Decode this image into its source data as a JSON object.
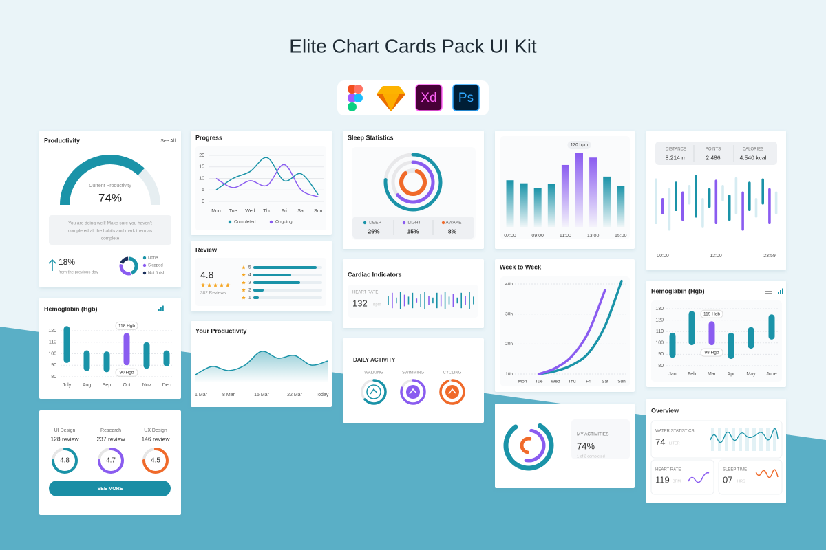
{
  "header": {
    "title": "Elite Chart Cards Pack UI Kit",
    "tools": [
      "Xd",
      "Ps"
    ]
  },
  "productivity": {
    "title": "Productivity",
    "link": "See All",
    "gauge_label": "Current Productivity",
    "gauge_value": 74,
    "gauge_value_label": "74%",
    "gauge_lim": [
      0,
      100
    ],
    "message": [
      "You are doing well! Make sure you haven't",
      "completed all the habits and mark them as",
      "complete"
    ],
    "change": "18%",
    "change_note": "from the previous day",
    "donut": [
      {
        "name": "Done",
        "color": "#1a93a8",
        "value": 45
      },
      {
        "name": "Skipped",
        "color": "#8a5cf0",
        "value": 35
      },
      {
        "name": "Not finish",
        "color": "#1b2f5a",
        "value": 20
      }
    ]
  },
  "hemoglobin": {
    "title": "Hemoglabin (Hgb)",
    "categories": [
      "July",
      "Aug",
      "Sep",
      "Oct",
      "Nov",
      "Dec"
    ],
    "lows": [
      92,
      85,
      84,
      90,
      87,
      89
    ],
    "highs": [
      124,
      103,
      102,
      118,
      110,
      103
    ],
    "high_labels": [
      null,
      null,
      null,
      "118 Hgb",
      null,
      null
    ],
    "low_labels": [
      null,
      null,
      null,
      "90 Hgb",
      null,
      null
    ],
    "colors": [
      "#1a93a8",
      "#1a93a8",
      "#1a93a8",
      "#8a5cf0",
      "#1a93a8",
      "#1a93a8"
    ],
    "ylim": [
      75,
      125
    ],
    "yticks": [
      80,
      90,
      100,
      110,
      120
    ]
  },
  "reviews": {
    "items": [
      {
        "name": "UI Design",
        "count": "128 review",
        "score": "4.8",
        "color": "#1a93a8"
      },
      {
        "name": "Research",
        "count": "237 review",
        "score": "4.7",
        "color": "#8a5cf0"
      },
      {
        "name": "UX Design",
        "count": "146 review",
        "score": "4.5",
        "color": "#f06a2a"
      }
    ],
    "button": "SEE MORE"
  },
  "progress": {
    "title": "Progress",
    "type": "line",
    "categories": [
      "Mon",
      "Tue",
      "Wed",
      "Thu",
      "Fri",
      "Sat",
      "Sun"
    ],
    "series": [
      {
        "name": "Completed",
        "color": "#1a93a8",
        "values": [
          5,
          10,
          13,
          19,
          9,
          12,
          3
        ]
      },
      {
        "name": "Ongoing",
        "color": "#8a5cf0",
        "values": [
          10,
          6,
          9,
          7,
          16,
          5,
          2
        ]
      }
    ],
    "ylim": [
      0,
      21
    ],
    "yticks": [
      0,
      5,
      10,
      15,
      20
    ]
  },
  "review": {
    "title": "Review",
    "score": "4.8",
    "count": "382 Reviews",
    "categories": [
      "5",
      "4",
      "3",
      "2",
      "1"
    ],
    "values": [
      92,
      55,
      68,
      15,
      8
    ],
    "xlim": [
      0,
      100
    ],
    "color": "#1a93a8"
  },
  "your_productivity": {
    "title": "Your Productivity",
    "type": "area",
    "categories": [
      "1 Mar",
      null,
      "8 Mar",
      null,
      "15 Mar",
      null,
      "22 Mar",
      null,
      "Today"
    ],
    "values": [
      10,
      22,
      16,
      24,
      44,
      34,
      38,
      24,
      30
    ],
    "ylim": [
      0,
      50
    ],
    "color": "#1a93a8"
  },
  "sleep": {
    "title": "Sleep Statistics",
    "stats": [
      {
        "name": "DEEP",
        "value": "26%",
        "color": "#1a93a8"
      },
      {
        "name": "LIGHT",
        "value": "15%",
        "color": "#8a5cf0"
      },
      {
        "name": "AWAKE",
        "value": "8%",
        "color": "#f06a2a"
      }
    ]
  },
  "cardiac": {
    "title": "Cardiac Indicators",
    "label": "HEART RATE",
    "value": "132",
    "unit": "bpm",
    "signal": [
      5,
      8,
      3,
      9,
      6,
      4,
      8,
      2,
      7,
      9,
      5,
      3,
      8,
      6,
      9,
      4,
      7,
      3,
      8,
      5,
      9,
      4
    ],
    "ylim": [
      0,
      10
    ],
    "color": "#1a93a8",
    "accent": "#8a5cf0"
  },
  "activity": {
    "title": "DAILY ACTIVITY",
    "items": [
      {
        "name": "WALKING",
        "color": "#1a93a8"
      },
      {
        "name": "SWIMMING",
        "color": "#8a5cf0"
      },
      {
        "name": "CYCLING",
        "color": "#f06a2a"
      }
    ]
  },
  "bpm": {
    "type": "bar",
    "categories": [
      "07:00",
      null,
      "09:00",
      null,
      "11:00",
      null,
      "13:00",
      null,
      "15:00"
    ],
    "values": [
      76,
      71,
      63,
      70,
      101,
      120,
      113,
      82,
      67
    ],
    "value_labels": [
      null,
      null,
      null,
      null,
      null,
      "120 bpm",
      null,
      null,
      null
    ],
    "colors": [
      "#1a93a8",
      "#1a93a8",
      "#1a93a8",
      "#1a93a8",
      "#8a5cf0",
      "#8a5cf0",
      "#8a5cf0",
      "#1a93a8",
      "#1a93a8"
    ],
    "ylim": [
      0,
      150
    ]
  },
  "week": {
    "title": "Week to Week",
    "categories": [
      "Mon",
      "Tue",
      "Wed",
      "Thu",
      "Fri",
      "Sat",
      "Sun"
    ],
    "series": [
      {
        "color": "#1a93a8",
        "values": [
          null,
          10,
          11,
          13,
          17,
          26,
          41
        ]
      },
      {
        "color": "#8a5cf0",
        "values": [
          null,
          10,
          12,
          16,
          24,
          38,
          null
        ]
      }
    ],
    "ylim": [
      9,
      42
    ],
    "yticks": [
      {
        "value": 10,
        "label": "10h"
      },
      {
        "value": 20,
        "label": "20h"
      },
      {
        "value": 30,
        "label": "30h"
      },
      {
        "value": 40,
        "label": "40h"
      }
    ]
  },
  "activities": {
    "label": "MY ACTIVITIES",
    "value": "74%",
    "note": "1 of 3 completed"
  },
  "distance": {
    "stats": [
      {
        "name": "DISTANCE",
        "value": "8.214 m"
      },
      {
        "name": "POINTS",
        "value": "2.486"
      },
      {
        "name": "CALORIES",
        "value": "4.540 kcal"
      }
    ],
    "x_labels": [
      "00:00",
      "12:00",
      "23:59"
    ],
    "lows": [
      20,
      35,
      10,
      40,
      25,
      50,
      30,
      15,
      45,
      20,
      55,
      25,
      35,
      10,
      40,
      30,
      50,
      20,
      35
    ],
    "highs": [
      90,
      60,
      75,
      85,
      70,
      80,
      95,
      60,
      75,
      88,
      80,
      65,
      92,
      70,
      85,
      60,
      90,
      75,
      70
    ],
    "colors": [
      "#d6ecf2",
      "#8a5cf0",
      "#d6ecf2",
      "#1a93a8",
      "#8a5cf0",
      "#d6ecf2",
      "#1a93a8",
      "#d6ecf2",
      "#1a93a8",
      "#8a5cf0",
      "#d6ecf2",
      "#1a93a8",
      "#d6ecf2",
      "#8a5cf0",
      "#1a93a8",
      "#d6ecf2",
      "#1a93a8",
      "#8a5cf0",
      "#d6ecf2"
    ],
    "ylim": [
      0,
      100
    ]
  },
  "hemoglobin2": {
    "title": "Hemoglabin (Hgb)",
    "categories": [
      "Jan",
      "Feb",
      "Mar",
      "Apr",
      "May",
      "June"
    ],
    "lows": [
      87,
      98,
      98,
      86,
      95,
      103
    ],
    "highs": [
      109,
      128,
      119,
      109,
      114,
      125
    ],
    "high_labels": [
      null,
      null,
      "119 Hgb",
      null,
      null,
      null
    ],
    "low_labels": [
      null,
      null,
      "98 Hgb",
      null,
      null,
      null
    ],
    "colors": [
      "#1a93a8",
      "#1a93a8",
      "#8a5cf0",
      "#1a93a8",
      "#1a93a8",
      "#1a93a8"
    ],
    "ylim": [
      75,
      135
    ],
    "yticks": [
      80,
      90,
      100,
      110,
      120,
      130
    ]
  },
  "overview": {
    "title": "Overview",
    "water": {
      "label": "WATER STATISTICS",
      "value": "74",
      "unit": "LITER"
    },
    "heart": {
      "label": "HEART RATE",
      "value": "119",
      "unit": "BPM"
    },
    "sleep": {
      "label": "SLEEP TIME",
      "value": "07",
      "unit": "HRS"
    }
  }
}
